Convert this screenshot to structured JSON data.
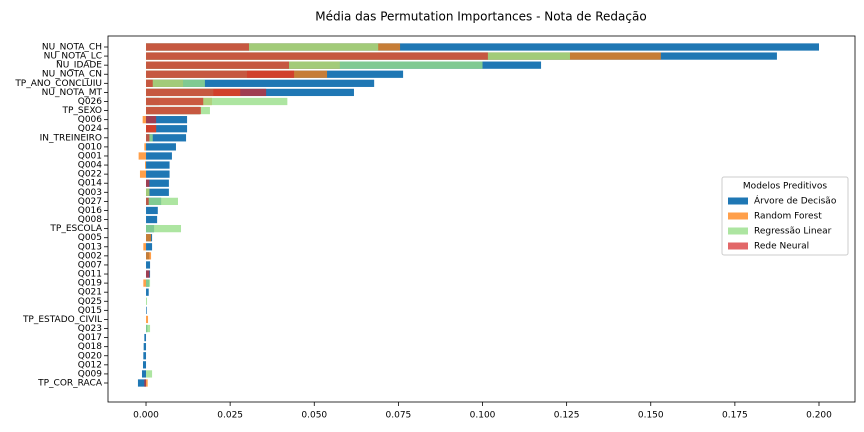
{
  "chart_data": {
    "type": "barh-overlay",
    "title": "Média das Permutation Importances - Nota de Redação",
    "categories": [
      "NU_NOTA_CH",
      "NU_NOTA_LC",
      "NU_IDADE",
      "NU_NOTA_CN",
      "TP_ANO_CONCLUIU",
      "NU_NOTA_MT",
      "Q026",
      "TP_SEXO",
      "Q006",
      "Q024",
      "IN_TREINEIRO",
      "Q010",
      "Q001",
      "Q004",
      "Q022",
      "Q014",
      "Q003",
      "Q027",
      "Q016",
      "Q008",
      "TP_ESCOLA",
      "Q005",
      "Q013",
      "Q002",
      "Q007",
      "Q011",
      "Q019",
      "Q021",
      "Q025",
      "Q015",
      "TP_ESTADO_CIVIL",
      "Q023",
      "Q017",
      "Q018",
      "Q020",
      "Q012",
      "Q009",
      "TP_COR_RACA"
    ],
    "series": [
      {
        "name": "Árvore de Decisão",
        "color": "#1f77b4",
        "alpha": 1,
        "values": [
          0.2,
          0.1875,
          0.1174,
          0.0764,
          0.0678,
          0.0618,
          0.004,
          0.016,
          0.0122,
          0.0122,
          0.0119,
          0.0089,
          0.0077,
          0.007,
          0.007,
          0.0068,
          0.0068,
          0.0045,
          0.0035,
          0.0033,
          0.0024,
          0.0018,
          0.0018,
          0.001,
          0.0012,
          0.0012,
          0.0009,
          0.0008,
          0,
          0.0002,
          0,
          0.0004,
          -0.0005,
          -0.0007,
          -0.0008,
          -0.0009,
          -0.0012,
          -0.0024
        ]
      },
      {
        "name": "Random  Forest",
        "color": "#ff7f0e",
        "alpha": 0.75,
        "values": [
          0.0755,
          0.153,
          0.0576,
          0.0538,
          0.011,
          0.028,
          0.0196,
          0.016,
          -0.001,
          0.003,
          0,
          -0.0005,
          -0.0022,
          -0.0003,
          -0.0018,
          0,
          0.001,
          0,
          0,
          0,
          0,
          0.0015,
          -0.0008,
          0.0015,
          0,
          0,
          -0.0008,
          0,
          0,
          0,
          0.0006,
          0,
          0,
          0,
          0,
          0,
          0,
          0.0005
        ]
      },
      {
        "name": "Regressão Linear",
        "color": "#98df8a",
        "alpha": 0.8,
        "values": [
          0.069,
          0.126,
          0.1,
          0.03,
          0.0175,
          0.02,
          0.042,
          0.019,
          0,
          0,
          0.002,
          0,
          0,
          0,
          0,
          0,
          0.001,
          0.0095,
          0,
          0,
          0.0104,
          0,
          0,
          0,
          0,
          0,
          0.0012,
          0,
          0.0003,
          0,
          0,
          0.0012,
          0,
          0,
          0,
          0,
          0.0018,
          0
        ]
      },
      {
        "name": "Rede Neural",
        "color": "#d62728",
        "alpha": 0.7,
        "values": [
          0.0306,
          0.1016,
          0.0425,
          0.044,
          0.002,
          0.0357,
          0.017,
          0.0163,
          0.003,
          0.003,
          0.001,
          0,
          0,
          0,
          0,
          0.001,
          0,
          0.0008,
          0,
          0,
          0,
          0,
          0,
          0,
          0,
          0.001,
          0,
          0,
          0,
          0,
          0,
          0,
          0,
          0,
          0,
          0,
          0,
          -0.0005
        ]
      }
    ],
    "xlim": [
      -0.0113,
      0.2107
    ],
    "xticks": [
      {
        "value": 0,
        "label": "0.000"
      },
      {
        "value": 0.025,
        "label": "0.025"
      },
      {
        "value": 0.05,
        "label": "0.050"
      },
      {
        "value": 0.075,
        "label": "0.075"
      },
      {
        "value": 0.1,
        "label": "0.100"
      },
      {
        "value": 0.125,
        "label": "0.125"
      },
      {
        "value": 0.15,
        "label": "0.150"
      },
      {
        "value": 0.175,
        "label": "0.175"
      },
      {
        "value": 0.2,
        "label": "0.200"
      }
    ],
    "legend_title": "Modelos Preditivos",
    "legend_position": "right"
  }
}
